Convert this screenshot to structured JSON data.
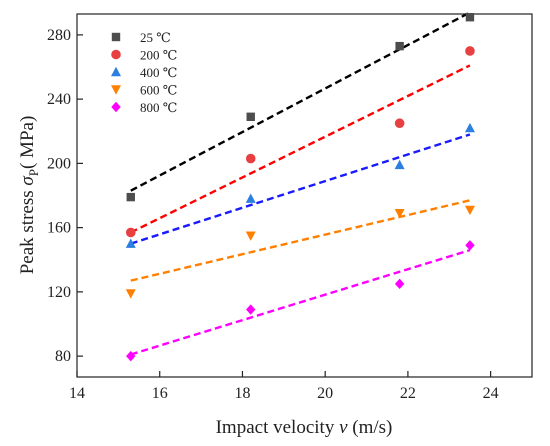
{
  "chart_data": {
    "type": "scatter",
    "xlabel_main": "Impact velocity ",
    "xlabel_var": "v",
    "xlabel_unit": " (m/s)",
    "ylabel_main": "Peak stress  ",
    "ylabel_sym": "σ",
    "ylabel_sub": "P",
    "ylabel_unit": "( MPa)",
    "xlim": [
      14,
      25
    ],
    "ylim": [
      67,
      293
    ],
    "x_ticks": [
      14,
      16,
      18,
      20,
      22,
      24
    ],
    "y_ticks": [
      80,
      120,
      160,
      200,
      240,
      280
    ],
    "grid": false,
    "legend_position": "top-left",
    "series": [
      {
        "name": "25 ℃",
        "marker": "square",
        "color": "#4d4d4d",
        "fit_color": "#000000",
        "points": [
          [
            15.3,
            179
          ],
          [
            18.2,
            229
          ],
          [
            21.8,
            273
          ],
          [
            23.5,
            291
          ]
        ],
        "fit": [
          [
            15.3,
            183
          ],
          [
            23.5,
            294
          ]
        ]
      },
      {
        "name": "200 ℃",
        "marker": "circle",
        "color": "#e84040",
        "fit_color": "#ff0000",
        "points": [
          [
            15.3,
            157
          ],
          [
            18.2,
            203
          ],
          [
            21.8,
            225
          ],
          [
            23.5,
            270
          ]
        ],
        "fit": [
          [
            15.3,
            157
          ],
          [
            23.5,
            261
          ]
        ]
      },
      {
        "name": "400 ℃",
        "marker": "triangle-up",
        "color": "#2b7fe0",
        "fit_color": "#1a1aff",
        "points": [
          [
            15.3,
            150
          ],
          [
            18.2,
            178
          ],
          [
            21.8,
            199
          ],
          [
            23.5,
            222
          ]
        ],
        "fit": [
          [
            15.3,
            150
          ],
          [
            23.5,
            218
          ]
        ]
      },
      {
        "name": "600 ℃",
        "marker": "triangle-down",
        "color": "#ff8000",
        "fit_color": "#ff8000",
        "points": [
          [
            15.3,
            119
          ],
          [
            18.2,
            155
          ],
          [
            21.8,
            169
          ],
          [
            23.5,
            171
          ]
        ],
        "fit": [
          [
            15.3,
            127
          ],
          [
            23.5,
            177
          ]
        ]
      },
      {
        "name": "800 ℃",
        "marker": "diamond",
        "color": "#ff00ff",
        "fit_color": "#ff00ff",
        "points": [
          [
            15.3,
            80
          ],
          [
            18.2,
            109
          ],
          [
            21.8,
            125
          ],
          [
            23.5,
            149
          ]
        ],
        "fit": [
          [
            15.3,
            81
          ],
          [
            23.5,
            146
          ]
        ]
      }
    ]
  }
}
